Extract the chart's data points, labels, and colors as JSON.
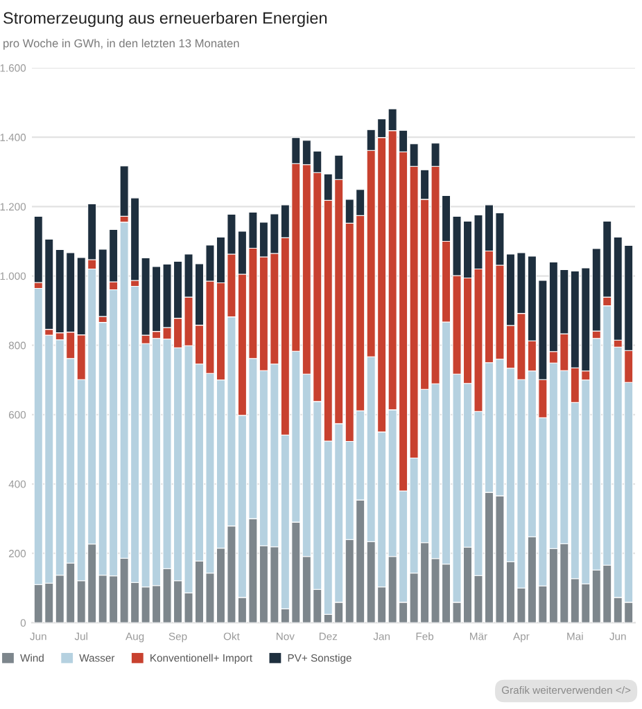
{
  "chart_data": {
    "type": "bar",
    "title": "Stromerzeugung aus erneuerbaren Energien",
    "subtitle": "pro Woche in GWh, in den letzten 13 Monaten",
    "categories": [
      "Jun",
      null,
      null,
      null,
      "Jul",
      null,
      null,
      null,
      null,
      "Aug",
      null,
      null,
      null,
      "Sep",
      null,
      null,
      null,
      null,
      "Okt",
      null,
      null,
      null,
      null,
      "Nov",
      null,
      null,
      null,
      "Dez",
      null,
      null,
      null,
      null,
      "Jan",
      null,
      null,
      null,
      "Feb",
      null,
      null,
      null,
      null,
      "Mär",
      null,
      null,
      null,
      "Apr",
      null,
      null,
      null,
      null,
      "Mai",
      null,
      null,
      null,
      "Jun",
      null
    ],
    "stacked": true,
    "series": [
      {
        "name": "Wind",
        "color": "#7d868c",
        "values": [
          110,
          114,
          137,
          172,
          121,
          227,
          137,
          135,
          186,
          116,
          103,
          107,
          156,
          121,
          86,
          178,
          143,
          215,
          279,
          73,
          300,
          222,
          219,
          40,
          290,
          191,
          96,
          24,
          59,
          240,
          354,
          234,
          103,
          191,
          59,
          143,
          231,
          185,
          169,
          59,
          218,
          136,
          376,
          366,
          176,
          100,
          248,
          106,
          214,
          228,
          127,
          112,
          152,
          166,
          73,
          59
        ]
      },
      {
        "name": "Wasser",
        "color": "#b5d1e0",
        "values": [
          854,
          715,
          679,
          590,
          580,
          793,
          729,
          825,
          969,
          854,
          702,
          713,
          662,
          672,
          713,
          568,
          576,
          485,
          603,
          525,
          462,
          505,
          527,
          501,
          493,
          526,
          542,
          500,
          515,
          283,
          257,
          533,
          447,
          423,
          321,
          332,
          442,
          504,
          698,
          658,
          472,
          473,
          374,
          394,
          558,
          601,
          478,
          485,
          535,
          499,
          508,
          588,
          668,
          748,
          722,
          634
        ]
      },
      {
        "name": "Konventionell+ Import",
        "color": "#c8412f",
        "values": [
          17,
          17,
          20,
          76,
          129,
          27,
          17,
          23,
          17,
          17,
          24,
          20,
          33,
          85,
          140,
          112,
          266,
          280,
          181,
          407,
          318,
          328,
          319,
          569,
          541,
          604,
          660,
          694,
          704,
          629,
          563,
          595,
          849,
          805,
          978,
          841,
          548,
          627,
          233,
          284,
          304,
          411,
          322,
          271,
          123,
          191,
          87,
          110,
          33,
          106,
          100,
          26,
          21,
          25,
          20,
          92
        ]
      },
      {
        "name": "PV+ Sonstige",
        "color": "#1e2f3e",
        "values": [
          191,
          260,
          240,
          229,
          223,
          161,
          194,
          151,
          145,
          238,
          223,
          187,
          183,
          164,
          124,
          177,
          104,
          132,
          115,
          124,
          104,
          100,
          114,
          95,
          75,
          70,
          62,
          76,
          70,
          69,
          75,
          60,
          54,
          63,
          62,
          65,
          85,
          67,
          132,
          171,
          164,
          156,
          133,
          151,
          206,
          175,
          244,
          286,
          258,
          185,
          279,
          297,
          238,
          219,
          297,
          303
        ]
      }
    ],
    "ylim": [
      0,
      1600
    ],
    "yticks": [
      0,
      200,
      400,
      600,
      800,
      {
        "value": 1000,
        "label": "1.000"
      },
      {
        "value": 1200,
        "label": "1.200"
      },
      {
        "value": 1400,
        "label": "1.400"
      },
      {
        "value": 1600,
        "label": "1.600"
      }
    ],
    "grid": "y",
    "legend": "bottom",
    "annotations": [
      "Grafik weiterverwenden </>"
    ]
  }
}
